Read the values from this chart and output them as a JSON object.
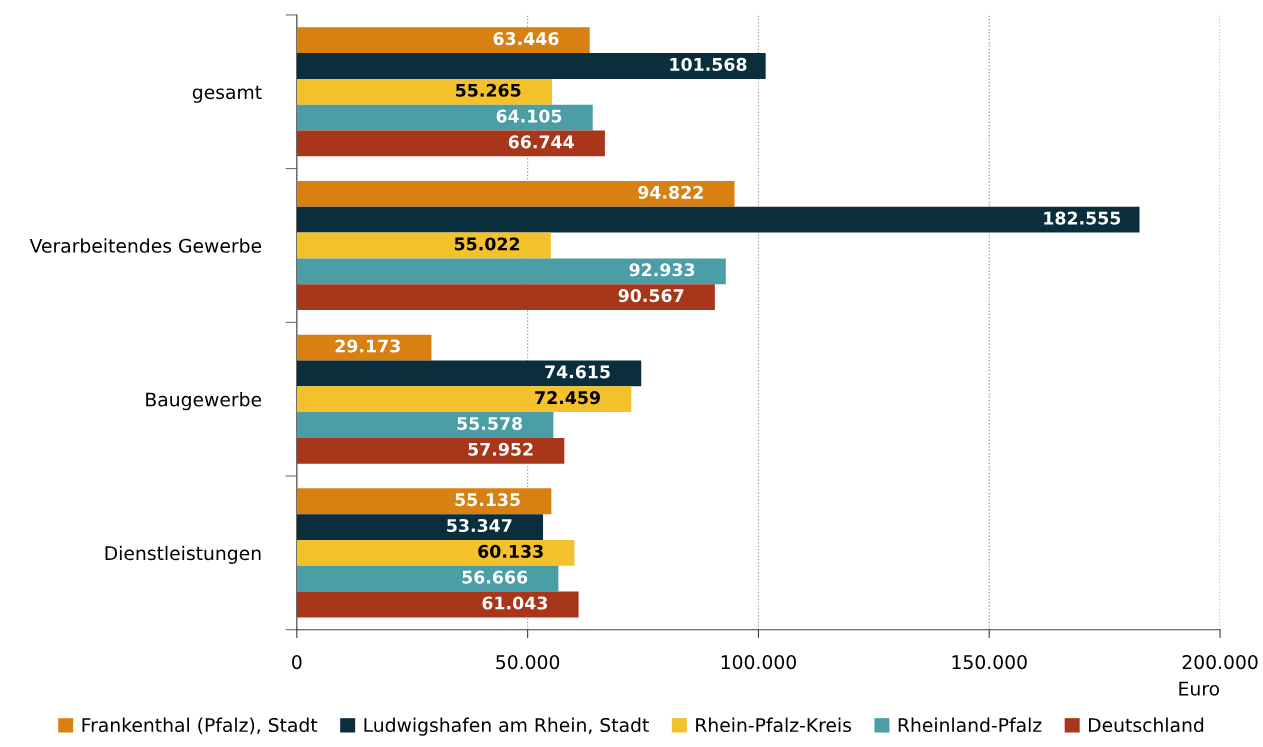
{
  "chart_data": {
    "type": "bar",
    "orientation": "horizontal",
    "xlabel": "Euro",
    "categories": [
      "gesamt",
      "Verarbeitendes Gewerbe",
      "Baugewerbe",
      "Dienstleistungen"
    ],
    "series": [
      {
        "name": "Frankenthal (Pfalz), Stadt",
        "color": "#d98012",
        "values": [
          63446,
          94822,
          29173,
          55135
        ],
        "value_labels": [
          "63.446",
          "94.822",
          "29.173",
          "55.135"
        ]
      },
      {
        "name": "Ludwigshafen am Rhein, Stadt",
        "color": "#0b2e3d",
        "values": [
          101568,
          182555,
          74615,
          53347
        ],
        "value_labels": [
          "101.568",
          "182.555",
          "74.615",
          "53.347"
        ]
      },
      {
        "name": "Rhein-Pfalz-Kreis",
        "color": "#f3c12b",
        "values": [
          55265,
          55022,
          72459,
          60133
        ],
        "value_labels": [
          "55.265",
          "55.022",
          "72.459",
          "60.133"
        ]
      },
      {
        "name": "Rheinland-Pfalz",
        "color": "#4c9ea6",
        "values": [
          64105,
          92933,
          55578,
          56666
        ],
        "value_labels": [
          "64.105",
          "92.933",
          "55.578",
          "56.666"
        ]
      },
      {
        "name": "Deutschland",
        "color": "#a8361b",
        "values": [
          66744,
          90567,
          57952,
          61043
        ],
        "value_labels": [
          "66.744",
          "90.567",
          "57.952",
          "61.043"
        ]
      }
    ],
    "xlim": [
      0,
      200000
    ],
    "xticks": [
      0,
      {
        "value": 50000,
        "label": "50.000"
      },
      {
        "value": 100000,
        "label": "100.000"
      },
      {
        "value": 150000,
        "label": "150.000"
      },
      {
        "value": 200000,
        "label": "200.000"
      }
    ],
    "grid": "x",
    "legend": "bottom"
  }
}
